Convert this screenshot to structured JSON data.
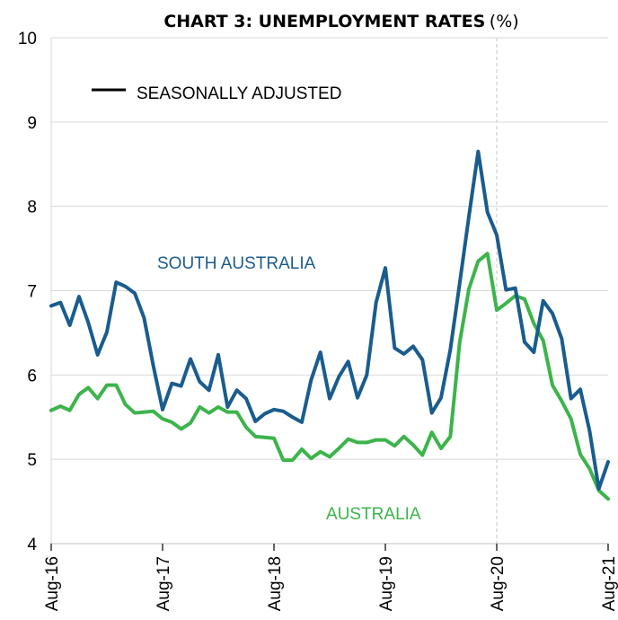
{
  "chart_data": {
    "type": "line",
    "title": "CHART 3: UNEMPLOYMENT RATES",
    "title_unit": "(%)",
    "legend": {
      "entries": [
        "SEASONALLY ADJUSTED"
      ],
      "placement": "top-left"
    },
    "xlabel": "",
    "ylabel": "",
    "ylim": [
      4,
      10
    ],
    "yticks": [
      4,
      5,
      6,
      7,
      8,
      9,
      10
    ],
    "grid": "horizontal",
    "x_start": "Aug-16",
    "x_end": "Aug-21",
    "xticks": [
      "Aug-16",
      "Aug-17",
      "Aug-18",
      "Aug-19",
      "Aug-20",
      "Aug-21"
    ],
    "reference_line": "Aug-20",
    "series": [
      {
        "name": "SOUTH AUSTRALIA",
        "color": "#1a5c8e",
        "values": [
          6.82,
          6.86,
          6.59,
          6.93,
          6.62,
          6.24,
          6.51,
          7.1,
          7.05,
          6.97,
          6.68,
          6.11,
          5.59,
          5.9,
          5.87,
          6.19,
          5.92,
          5.82,
          6.24,
          5.62,
          5.82,
          5.72,
          5.45,
          5.54,
          5.59,
          5.57,
          5.5,
          5.44,
          5.94,
          6.27,
          5.72,
          5.98,
          6.16,
          5.73,
          6.0,
          6.86,
          7.27,
          6.32,
          6.25,
          6.34,
          6.18,
          5.55,
          5.73,
          6.3,
          7.08,
          7.88,
          8.65,
          7.93,
          7.66,
          7.01,
          7.03,
          6.39,
          6.27,
          6.88,
          6.73,
          6.43,
          5.72,
          5.83,
          5.34,
          4.65,
          4.97
        ]
      },
      {
        "name": "AUSTRALIA",
        "color": "#3cb44b",
        "values": [
          5.58,
          5.63,
          5.58,
          5.77,
          5.85,
          5.72,
          5.88,
          5.88,
          5.65,
          5.55,
          5.56,
          5.57,
          5.48,
          5.44,
          5.36,
          5.43,
          5.62,
          5.55,
          5.62,
          5.56,
          5.56,
          5.38,
          5.27,
          5.26,
          5.25,
          4.99,
          4.99,
          5.12,
          5.01,
          5.09,
          5.03,
          5.13,
          5.24,
          5.2,
          5.2,
          5.23,
          5.23,
          5.16,
          5.27,
          5.17,
          5.05,
          5.32,
          5.13,
          5.27,
          6.38,
          7.02,
          7.35,
          7.44,
          6.77,
          6.85,
          6.94,
          6.9,
          6.61,
          6.41,
          5.88,
          5.69,
          5.48,
          5.06,
          4.89,
          4.63,
          4.53
        ]
      }
    ]
  }
}
